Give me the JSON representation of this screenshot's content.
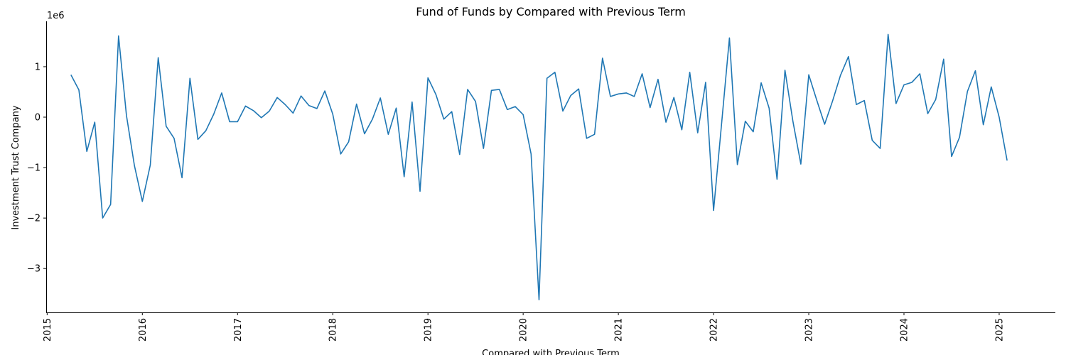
{
  "chart_data": {
    "type": "line",
    "title": "Fund of Funds by Compared with Previous Term",
    "xlabel": "Compared with Previous Term",
    "ylabel": "Investment Trust Company",
    "y_scale_label": "1e6",
    "x_ticks": [
      "2015",
      "2016",
      "2017",
      "2018",
      "2019",
      "2020",
      "2021",
      "2022",
      "2023",
      "2024",
      "2025"
    ],
    "x_tick_years": [
      2015,
      2016,
      2017,
      2018,
      2019,
      2020,
      2021,
      2022,
      2023,
      2024,
      2025
    ],
    "y_ticks": [
      1,
      0,
      -1,
      -2,
      -3
    ],
    "y_tick_labels": [
      "1",
      "0",
      "−1",
      "−2",
      "−3"
    ],
    "xlim": [
      2014.99,
      2025.59
    ],
    "ylim": [
      -3.87,
      1.9
    ],
    "grid": false,
    "line_color": "#1f77b4",
    "series": [
      {
        "x": [
          "2015-04",
          "2015-05",
          "2015-06",
          "2015-07",
          "2015-08",
          "2015-09",
          "2015-10",
          "2015-11",
          "2015-12",
          "2016-01",
          "2016-02",
          "2016-03",
          "2016-04",
          "2016-05",
          "2016-06",
          "2016-07",
          "2016-08",
          "2016-09",
          "2016-10",
          "2016-11",
          "2016-12",
          "2017-01",
          "2017-02",
          "2017-03",
          "2017-04",
          "2017-05",
          "2017-06",
          "2017-07",
          "2017-08",
          "2017-09",
          "2017-10",
          "2017-11",
          "2017-12",
          "2018-01",
          "2018-02",
          "2018-03",
          "2018-04",
          "2018-05",
          "2018-06",
          "2018-07",
          "2018-08",
          "2018-09",
          "2018-10",
          "2018-11",
          "2018-12",
          "2019-01",
          "2019-02",
          "2019-03",
          "2019-04",
          "2019-05",
          "2019-06",
          "2019-07",
          "2019-08",
          "2019-09",
          "2019-10",
          "2019-11",
          "2019-12",
          "2020-01",
          "2020-02",
          "2020-03",
          "2020-04",
          "2020-05",
          "2020-06",
          "2020-07",
          "2020-08",
          "2020-09",
          "2020-10",
          "2020-11",
          "2020-12",
          "2021-01",
          "2021-02",
          "2021-03",
          "2021-04",
          "2021-05",
          "2021-06",
          "2021-07",
          "2021-08",
          "2021-09",
          "2021-10",
          "2021-11",
          "2021-12",
          "2022-01",
          "2022-02",
          "2022-03",
          "2022-04",
          "2022-05",
          "2022-06",
          "2022-07",
          "2022-08",
          "2022-09",
          "2022-10",
          "2022-11",
          "2022-12",
          "2023-01",
          "2023-02",
          "2023-03",
          "2023-04",
          "2023-05",
          "2023-06",
          "2023-07",
          "2023-08",
          "2023-09",
          "2023-10",
          "2023-11",
          "2023-12",
          "2024-01",
          "2024-02",
          "2024-03",
          "2024-04",
          "2024-05",
          "2024-06",
          "2024-07",
          "2024-08",
          "2024-09",
          "2024-10",
          "2024-11",
          "2024-12",
          "2025-01",
          "2025-02"
        ],
        "values": [
          840000,
          540000,
          -680000,
          -100000,
          -2000000,
          -1730000,
          1610000,
          30000,
          -960000,
          -1670000,
          -950000,
          1180000,
          -180000,
          -420000,
          -1200000,
          770000,
          -440000,
          -270000,
          60000,
          480000,
          -90000,
          -90000,
          220000,
          130000,
          -10000,
          120000,
          390000,
          250000,
          80000,
          420000,
          230000,
          170000,
          520000,
          60000,
          -730000,
          -490000,
          260000,
          -330000,
          -40000,
          380000,
          -340000,
          180000,
          -1180000,
          300000,
          -1470000,
          780000,
          450000,
          -40000,
          110000,
          -740000,
          550000,
          310000,
          -620000,
          530000,
          550000,
          150000,
          210000,
          50000,
          -730000,
          -3620000,
          770000,
          890000,
          120000,
          430000,
          560000,
          -420000,
          -340000,
          1170000,
          410000,
          460000,
          480000,
          410000,
          860000,
          190000,
          750000,
          -100000,
          390000,
          -250000,
          890000,
          -310000,
          690000,
          -1850000,
          -150000,
          1570000,
          -940000,
          -80000,
          -290000,
          680000,
          180000,
          -1230000,
          930000,
          -80000,
          -930000,
          840000,
          340000,
          -140000,
          320000,
          830000,
          1200000,
          250000,
          330000,
          -460000,
          -620000,
          1640000,
          270000,
          640000,
          690000,
          860000,
          70000,
          350000,
          1150000,
          -780000,
          -400000,
          510000,
          920000,
          -150000,
          600000,
          0,
          -860000
        ]
      }
    ]
  }
}
